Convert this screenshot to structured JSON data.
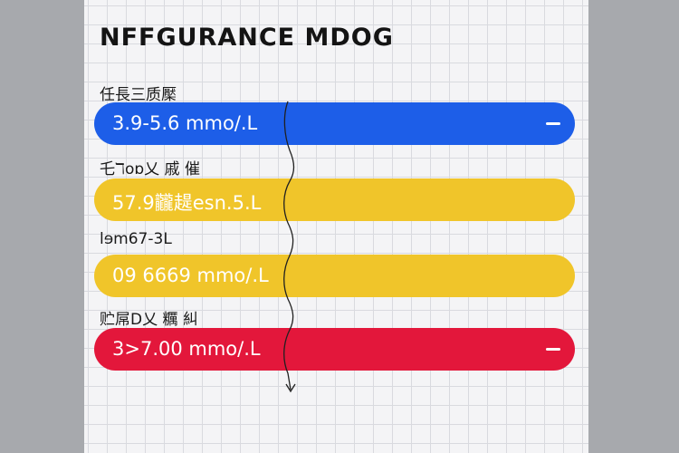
{
  "title": "NFFGURANCE MDOG",
  "rows": [
    {
      "label": "任長三质檿",
      "value": "3.9-5.6 mmo/.L",
      "color": "#1d5ee8",
      "text_color": "#ffffff",
      "has_minus": true
    },
    {
      "label": "乇ℸoɒ乂 戚 催",
      "value": "57.9龖趧esn.5.L",
      "color": "#f0c52a",
      "text_color": "#ffffff",
      "has_minus": false
    },
    {
      "label": "lɘm67-3L",
      "value": "09 6669 mmo/.L",
      "color": "#f0c52a",
      "text_color": "#ffffff",
      "has_minus": false
    },
    {
      "label": "贮屌D乂 糲 糾",
      "value": "3>7.00 mmo/.L",
      "color": "#e3173b",
      "text_color": "#ffffff",
      "has_minus": true
    }
  ],
  "icons": {
    "minus": "minus-icon",
    "arrow": "curved-arrow-icon"
  }
}
